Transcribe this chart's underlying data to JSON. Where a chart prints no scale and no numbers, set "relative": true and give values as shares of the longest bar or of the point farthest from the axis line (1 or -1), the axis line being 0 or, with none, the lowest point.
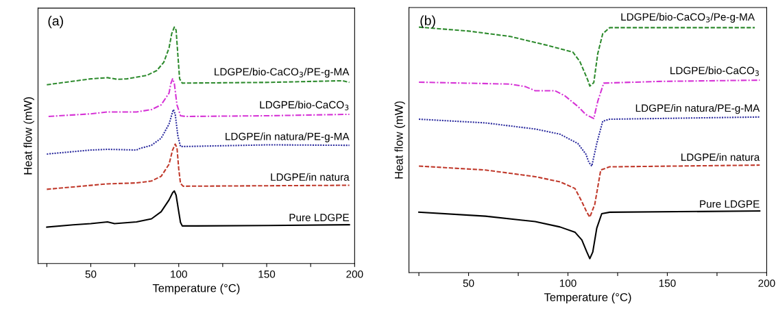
{
  "chart_data": [
    {
      "type": "line",
      "relative": true,
      "xlabel": "Temperature (°C)",
      "ylabel": "Heat flow (mW)",
      "annotations": [
        "(a)"
      ],
      "xlim": [
        20,
        200
      ],
      "xticks": [
        {
          "value": 25,
          "label": null
        },
        50,
        {
          "value": 75,
          "label": null
        },
        100,
        {
          "value": 125,
          "label": null
        },
        150,
        {
          "value": 175,
          "label": null
        },
        200
      ],
      "tick_labels": "x",
      "grid": false,
      "legend": false,
      "series": [
        {
          "name": "Pure LDGPE",
          "color": "#000000",
          "line_style": "solid",
          "x": [
            25,
            40,
            50,
            59.5,
            63.5,
            76,
            84.5,
            90,
            94.5,
            96.5,
            97.5,
            98.5,
            100,
            101,
            102,
            110,
            151,
            197
          ],
          "values": [
            0.154,
            0.164,
            0.169,
            0.176,
            0.169,
            0.176,
            0.189,
            0.219,
            0.269,
            0.299,
            0.307,
            0.289,
            0.219,
            0.174,
            0.159,
            0.159,
            0.161,
            0.164
          ]
        },
        {
          "name": "LDGPE/in natura",
          "color": "#c0392b",
          "line_style": "dashed",
          "x": [
            25,
            40,
            59.5,
            76,
            84.5,
            90,
            94.5,
            96.5,
            98,
            99,
            100,
            101,
            102.5,
            151,
            197
          ],
          "values": [
            0.314,
            0.324,
            0.337,
            0.341,
            0.349,
            0.369,
            0.42,
            0.48,
            0.505,
            0.49,
            0.4,
            0.339,
            0.327,
            0.329,
            0.331
          ]
        },
        {
          "name": "LDGPE/in natura/PE-g-MA",
          "color": "#2b2b9e",
          "line_style": "dotted",
          "x": [
            25,
            50,
            59.5,
            76,
            78,
            84.5,
            90,
            94.5,
            96.5,
            97,
            98,
            99.5,
            101,
            104,
            151,
            197
          ],
          "values": [
            0.463,
            0.48,
            0.483,
            0.48,
            0.487,
            0.5,
            0.53,
            0.59,
            0.641,
            0.651,
            0.631,
            0.54,
            0.495,
            0.495,
            0.502,
            0.5
          ]
        },
        {
          "name": "LDGPE/bio-CaCO$_{3}$",
          "color": "#d633d6",
          "line_style": "dashdot",
          "x": [
            26,
            50,
            59.5,
            76,
            84.5,
            90,
            94.5,
            95.5,
            96.5,
            97.5,
            99,
            101,
            104,
            151,
            197
          ],
          "values": [
            0.622,
            0.633,
            0.641,
            0.641,
            0.651,
            0.671,
            0.721,
            0.761,
            0.781,
            0.761,
            0.671,
            0.625,
            0.622,
            0.625,
            0.631
          ]
        },
        {
          "name": "LDGPE/bio-CaCO$_{3}$/PE-g-MA",
          "color": "#2e8b2e",
          "line_style": "dashed",
          "x": [
            25,
            50,
            59.5,
            65,
            70.5,
            82,
            87.5,
            91.5,
            94.5,
            96,
            97.5,
            98.5,
            99.5,
            100.5,
            102,
            151,
            193,
            197
          ],
          "values": [
            0.756,
            0.781,
            0.786,
            0.779,
            0.781,
            0.796,
            0.816,
            0.851,
            0.912,
            0.972,
            1.0,
            0.987,
            0.882,
            0.781,
            0.763,
            0.766,
            0.773,
            0.766
          ]
        }
      ]
    },
    {
      "type": "line",
      "relative": true,
      "xlabel": "Temperature (°C)",
      "ylabel": "Heat flow (mW)",
      "annotations": [
        "(b)"
      ],
      "xlim": [
        20,
        200
      ],
      "xticks": [
        {
          "value": 25,
          "label": null
        },
        50,
        {
          "value": 75,
          "label": null
        },
        100,
        {
          "value": 125,
          "label": null
        },
        150,
        {
          "value": 175,
          "label": null
        },
        200
      ],
      "tick_labels": "x",
      "grid": false,
      "legend": false,
      "series": [
        {
          "name": "Pure LDGPE",
          "color": "#000000",
          "line_style": "solid",
          "x": [
            25,
            58.5,
            83.5,
            96,
            103.5,
            107,
            109.5,
            111,
            112.5,
            114.5,
            117,
            121,
            196.5
          ],
          "values": [
            0.246,
            0.23,
            0.208,
            0.186,
            0.165,
            0.133,
            0.084,
            0.057,
            0.084,
            0.181,
            0.24,
            0.246,
            0.251
          ]
        },
        {
          "name": "LDGPE/in natura",
          "color": "#c0392b",
          "line_style": "dashed",
          "x": [
            25,
            58.5,
            83.5,
            96,
            103.5,
            107,
            109.5,
            111,
            113.5,
            116.5,
            121,
            196.5
          ],
          "values": [
            0.434,
            0.418,
            0.391,
            0.37,
            0.343,
            0.289,
            0.246,
            0.226,
            0.278,
            0.418,
            0.431,
            0.438
          ]
        },
        {
          "name": "LDGPE/in natura/PE-g-MA",
          "color": "#2b2b9e",
          "line_style": "dotted",
          "x": [
            25,
            58.5,
            83.5,
            96,
            105,
            109,
            110.5,
            112,
            114.5,
            117.5,
            121,
            196.5
          ],
          "values": [
            0.625,
            0.61,
            0.585,
            0.564,
            0.526,
            0.483,
            0.45,
            0.434,
            0.526,
            0.617,
            0.625,
            0.634
          ]
        },
        {
          "name": "LDGPE/bio-CaCO$_{3}$",
          "color": "#d633d6",
          "line_style": "dashdot",
          "x": [
            25,
            71,
            78.5,
            83.5,
            93.5,
            98.5,
            105,
            109,
            113,
            115,
            118,
            146,
            196.5
          ],
          "values": [
            0.776,
            0.768,
            0.758,
            0.741,
            0.741,
            0.72,
            0.677,
            0.644,
            0.628,
            0.698,
            0.772,
            0.779,
            0.784
          ]
        },
        {
          "name": "LDGPE/bio-CaCO$_{3}$/Pe-g-MA",
          "color": "#2e8b2e",
          "line_style": "dashed",
          "x": [
            25,
            50,
            71,
            90,
            102.5,
            106,
            110,
            111,
            113,
            115,
            117.5,
            121,
            159,
            194
          ],
          "values": [
            1.0,
            0.984,
            0.962,
            0.925,
            0.898,
            0.86,
            0.784,
            0.76,
            0.774,
            0.892,
            0.973,
            0.998,
            0.998,
            0.998
          ]
        }
      ]
    }
  ]
}
